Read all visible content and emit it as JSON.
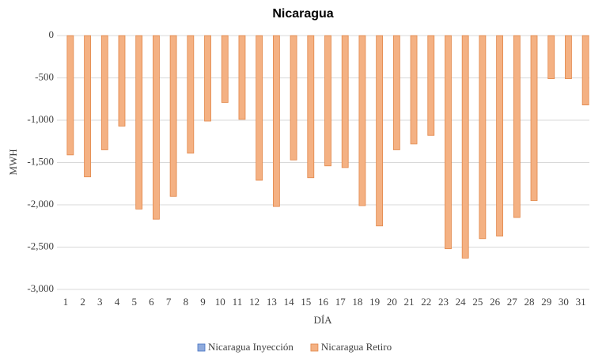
{
  "chart_data": {
    "type": "bar",
    "title": "Nicaragua",
    "x_label": "DÍA",
    "y_label": "MWH",
    "categories": [
      "1",
      "2",
      "3",
      "4",
      "5",
      "6",
      "7",
      "8",
      "9",
      "10",
      "11",
      "12",
      "13",
      "14",
      "15",
      "16",
      "17",
      "18",
      "19",
      "20",
      "21",
      "22",
      "23",
      "24",
      "25",
      "26",
      "27",
      "28",
      "29",
      "30",
      "31"
    ],
    "series": [
      {
        "name": "Nicaragua Inyección",
        "color": "#8faadc",
        "values": [
          0,
          0,
          0,
          0,
          0,
          0,
          0,
          0,
          0,
          0,
          0,
          0,
          0,
          0,
          0,
          0,
          0,
          0,
          0,
          0,
          0,
          0,
          0,
          0,
          0,
          0,
          0,
          0,
          0,
          0,
          0
        ]
      },
      {
        "name": "Nicaragua Retiro",
        "color": "#f4b183",
        "values": [
          -1410,
          -1670,
          -1350,
          -1070,
          -2050,
          -2170,
          -1900,
          -1390,
          -1010,
          -790,
          -990,
          -1710,
          -2020,
          -1470,
          -1680,
          -1540,
          -1560,
          -2010,
          -2250,
          -1350,
          -1280,
          -1180,
          -2520,
          -2630,
          -2400,
          -2370,
          -2150,
          -1950,
          -510,
          -510,
          -820
        ]
      }
    ],
    "ylim": [
      -3000,
      0
    ],
    "yticks": [
      {
        "value": -3000,
        "label": "-3,000"
      },
      {
        "value": -2500,
        "label": "-2,500"
      },
      {
        "value": -2000,
        "label": "-2,000"
      },
      {
        "value": -1500,
        "label": "-1,500"
      },
      {
        "value": -1000,
        "label": "-1,000"
      },
      -500,
      0
    ],
    "grid": true,
    "legend": "bottom"
  }
}
